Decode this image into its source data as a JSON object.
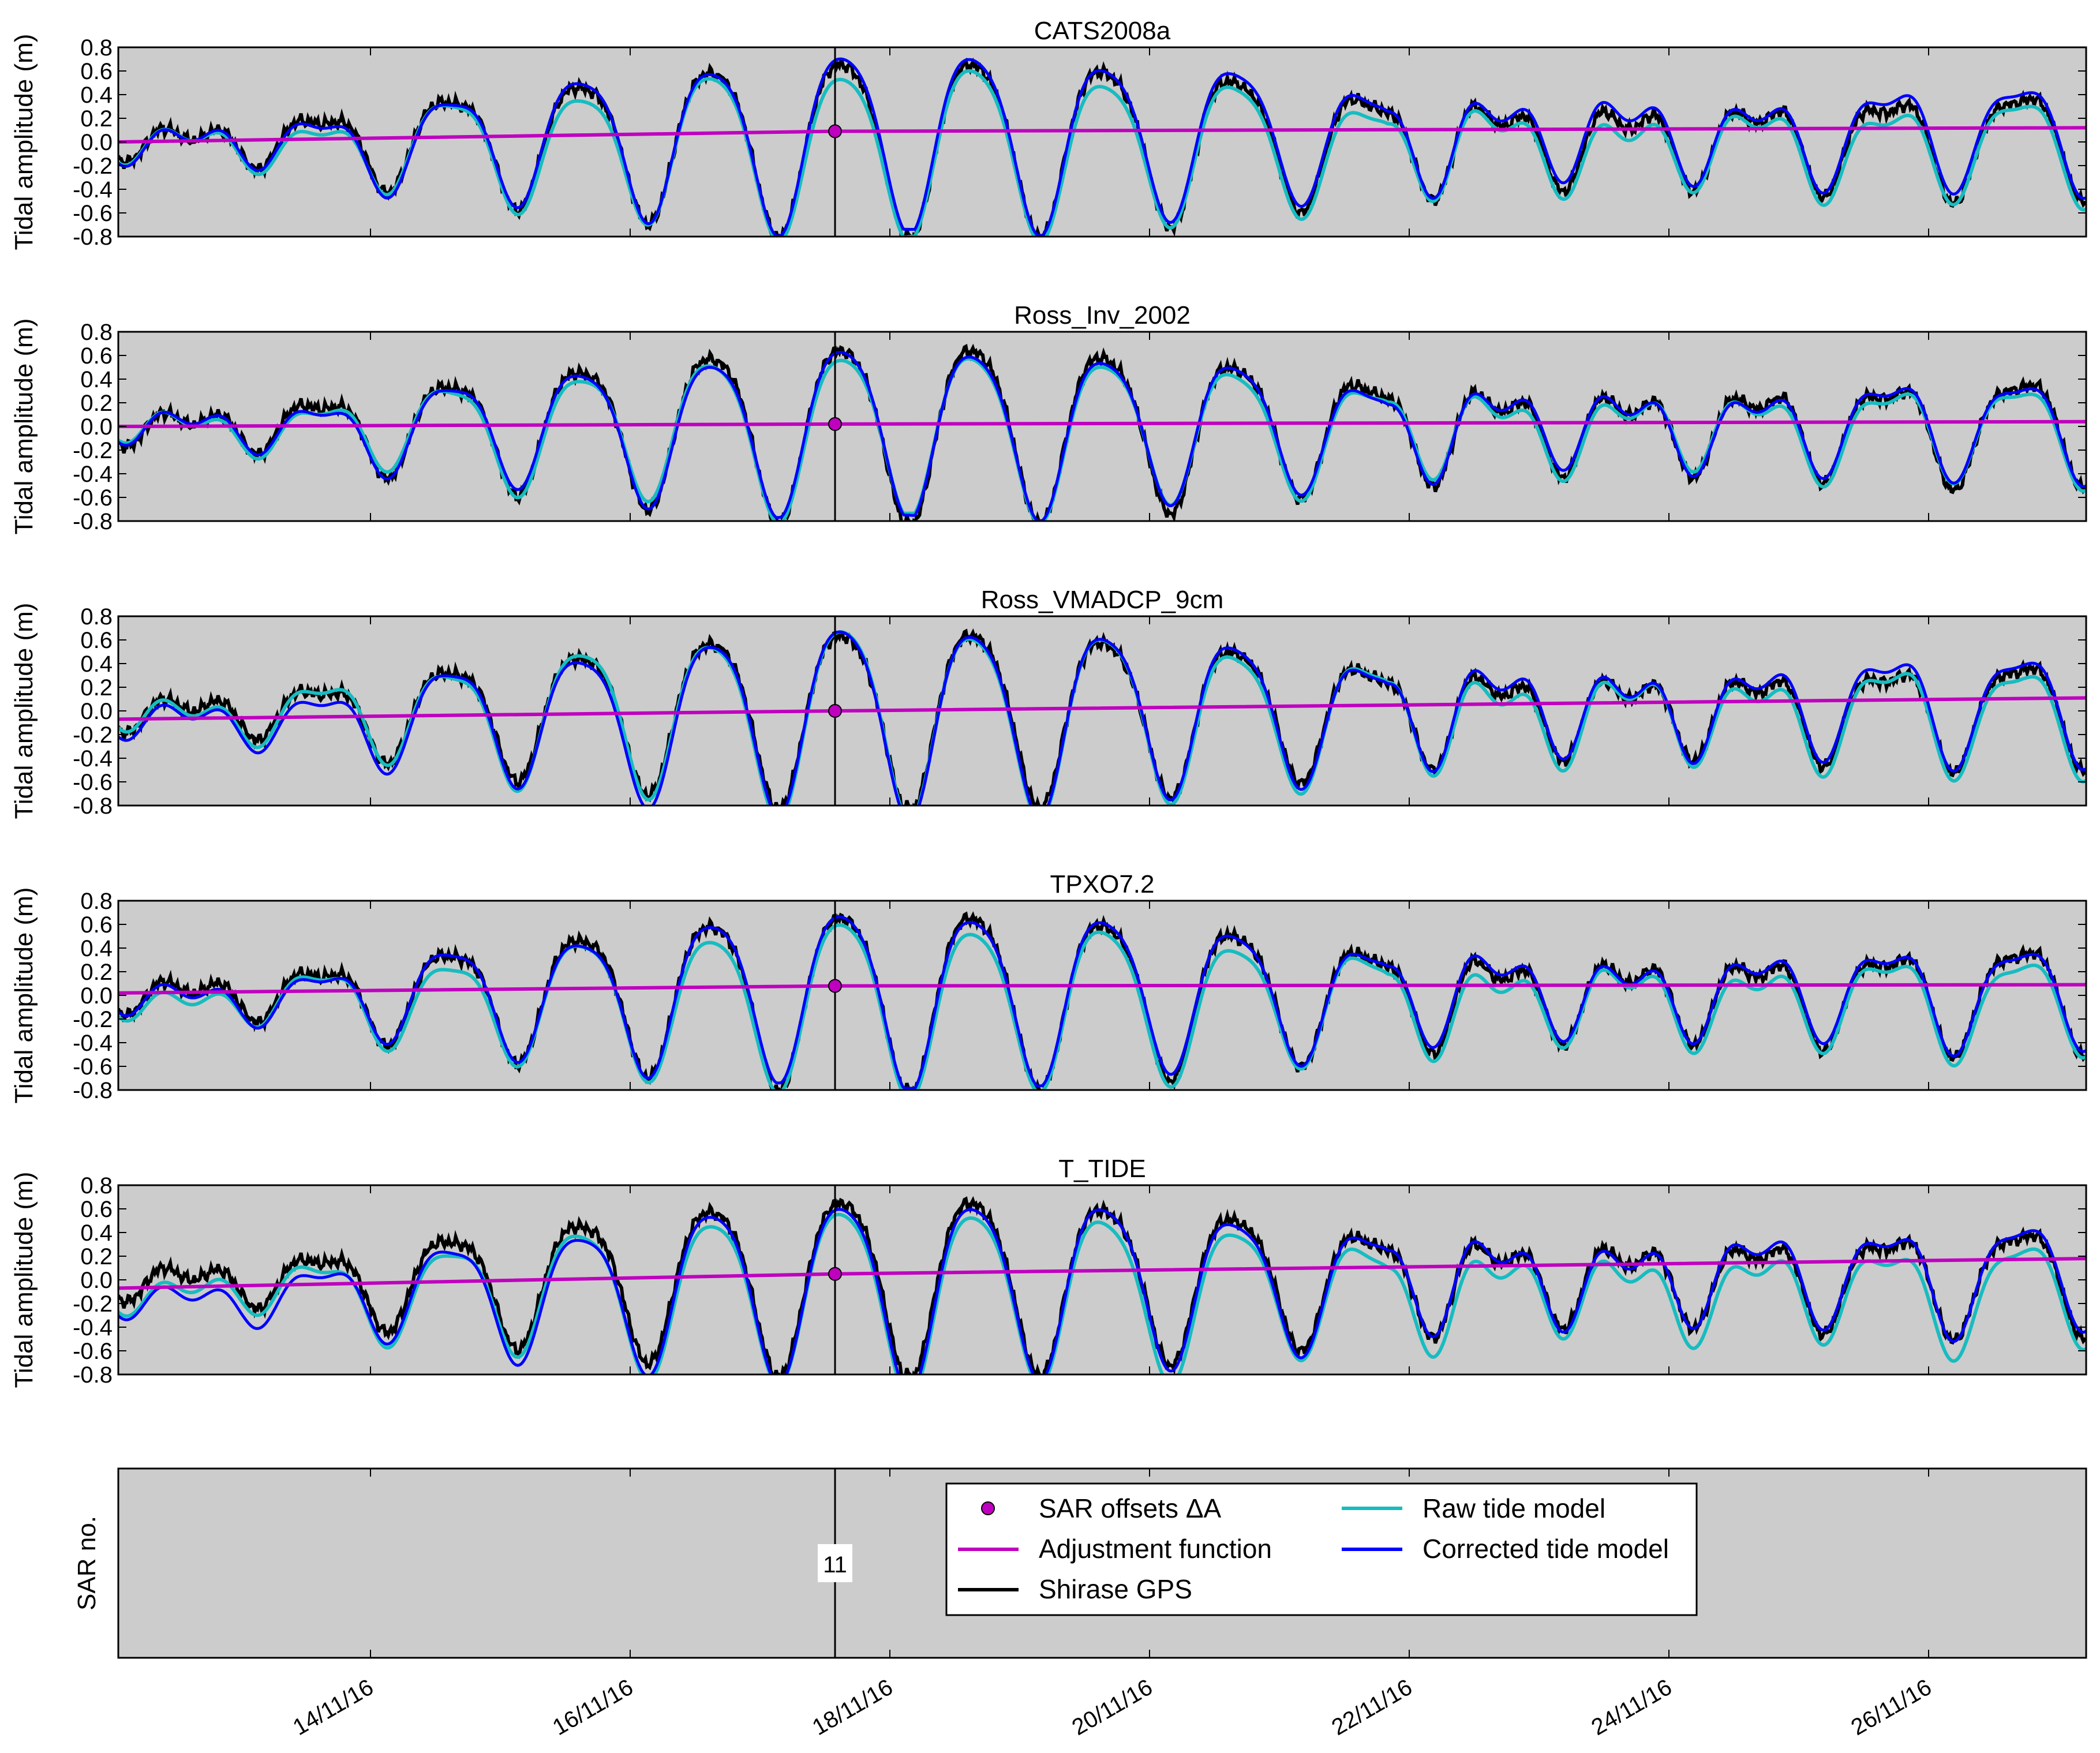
{
  "figure": {
    "ylabel": "Tidal amplitude (m)",
    "sar_ylabel": "SAR no.",
    "sar_marker_label": "11",
    "x_tick_labels": [
      "14/11/16",
      "16/11/16",
      "18/11/16",
      "20/11/16",
      "22/11/16",
      "24/11/16",
      "26/11/16"
    ],
    "y_tick_labels": [
      "0.8",
      "0.6",
      "0.4",
      "0.2",
      "0.0",
      "-0.2",
      "-0.4",
      "-0.6",
      "-0.8"
    ],
    "legend": {
      "sar_offsets": "SAR offsets ΔA",
      "adjustment": "Adjustment function",
      "gps": "Shirase GPS",
      "raw": "Raw tide model",
      "corrected": "Corrected tide model"
    },
    "colors": {
      "background": "#cccccc",
      "gps": "#000000",
      "raw": "#17bcc0",
      "corrected": "#0000ff",
      "adjustment": "#bf00bf"
    }
  },
  "chart_data": [
    {
      "type": "line",
      "title": "CATS2008a",
      "ylabel": "Tidal amplitude (m)",
      "ylim": [
        -0.8,
        0.8
      ],
      "xlim": [
        "2016-11-12T11:00",
        "2016-11-27T23:00"
      ],
      "sar_offset": {
        "x": "2016-11-17T18:00",
        "y": 0.09
      },
      "adjustment": {
        "start": 0.0,
        "mid": 0.09,
        "end": 0.12
      },
      "raw_scale": 0.95,
      "raw_shift": -0.04,
      "corr_scale": 1.0,
      "corr_shift": 0.02,
      "series": [
        {
          "name": "Shirase GPS",
          "values": "GPS record, semi-diurnal/diurnal tide, peaks ~0.6 m, troughs ~-0.8 m"
        },
        {
          "name": "Raw tide model",
          "values": "model amplitude ~0.95 of GPS, offset -0.04 m"
        },
        {
          "name": "Corrected tide model",
          "values": "raw model + adjustment function"
        },
        {
          "name": "Adjustment function",
          "values": [
            0.0,
            0.09,
            0.12
          ]
        }
      ]
    },
    {
      "type": "line",
      "title": "Ross_Inv_2002",
      "ylabel": "Tidal amplitude (m)",
      "ylim": [
        -0.8,
        0.8
      ],
      "xlim": [
        "2016-11-12T11:00",
        "2016-11-27T23:00"
      ],
      "sar_offset": {
        "x": "2016-11-17T18:00",
        "y": 0.02
      },
      "adjustment": {
        "start": 0.0,
        "mid": 0.02,
        "end": 0.04
      },
      "raw_scale": 0.92,
      "raw_shift": -0.02,
      "corr_scale": 0.94,
      "corr_shift": 0.0,
      "series": [
        {
          "name": "Shirase GPS",
          "values": "GPS record"
        },
        {
          "name": "Raw tide model",
          "values": "model"
        },
        {
          "name": "Corrected tide model",
          "values": "model + adjustment"
        },
        {
          "name": "Adjustment function",
          "values": [
            0.0,
            0.02,
            0.04
          ]
        }
      ]
    },
    {
      "type": "line",
      "title": "Ross_VMADCP_9cm",
      "ylabel": "Tidal amplitude (m)",
      "ylim": [
        -0.8,
        0.8
      ],
      "xlim": [
        "2016-11-12T11:00",
        "2016-11-27T23:00"
      ],
      "sar_offset": {
        "x": "2016-11-17T18:00",
        "y": 0.0
      },
      "adjustment": {
        "start": -0.07,
        "mid": 0.0,
        "end": 0.11
      },
      "raw_scale": 1.05,
      "raw_shift": -0.03,
      "corr_scale": 1.05,
      "corr_shift": 0.03,
      "series": [
        {
          "name": "Shirase GPS",
          "values": "GPS record"
        },
        {
          "name": "Raw tide model",
          "values": "model"
        },
        {
          "name": "Corrected tide model",
          "values": "model + adjustment"
        },
        {
          "name": "Adjustment function",
          "values": [
            -0.07,
            0.0,
            0.11
          ]
        }
      ]
    },
    {
      "type": "line",
      "title": "TPXO7.2",
      "ylabel": "Tidal amplitude (m)",
      "ylim": [
        -0.8,
        0.8
      ],
      "xlim": [
        "2016-11-12T11:00",
        "2016-11-27T23:00"
      ],
      "sar_offset": {
        "x": "2016-11-17T18:00",
        "y": 0.08
      },
      "adjustment": {
        "start": 0.02,
        "mid": 0.08,
        "end": 0.09
      },
      "raw_scale": 0.95,
      "raw_shift": -0.05,
      "corr_scale": 0.97,
      "corr_shift": 0.03,
      "series": [
        {
          "name": "Shirase GPS",
          "values": "GPS record"
        },
        {
          "name": "Raw tide model",
          "values": "model"
        },
        {
          "name": "Corrected tide model",
          "values": "model + adjustment"
        },
        {
          "name": "Adjustment function",
          "values": [
            0.02,
            0.08,
            0.09
          ]
        }
      ]
    },
    {
      "type": "line",
      "title": "T_TIDE",
      "ylabel": "Tidal amplitude (m)",
      "ylim": [
        -0.8,
        0.8
      ],
      "xlim": [
        "2016-11-12T11:00",
        "2016-11-27T23:00"
      ],
      "sar_offset": {
        "x": "2016-11-17T18:00",
        "y": 0.05
      },
      "adjustment": {
        "start": -0.07,
        "mid": 0.05,
        "end": 0.18
      },
      "raw_scale": 1.0,
      "raw_shift": -0.1,
      "corr_scale": 1.02,
      "corr_shift": 0.05,
      "series": [
        {
          "name": "Shirase GPS",
          "values": "GPS record"
        },
        {
          "name": "Raw tide model",
          "values": "model"
        },
        {
          "name": "Corrected tide model",
          "values": "model + adjustment"
        },
        {
          "name": "Adjustment function",
          "values": [
            -0.07,
            0.05,
            0.18
          ]
        }
      ]
    }
  ]
}
